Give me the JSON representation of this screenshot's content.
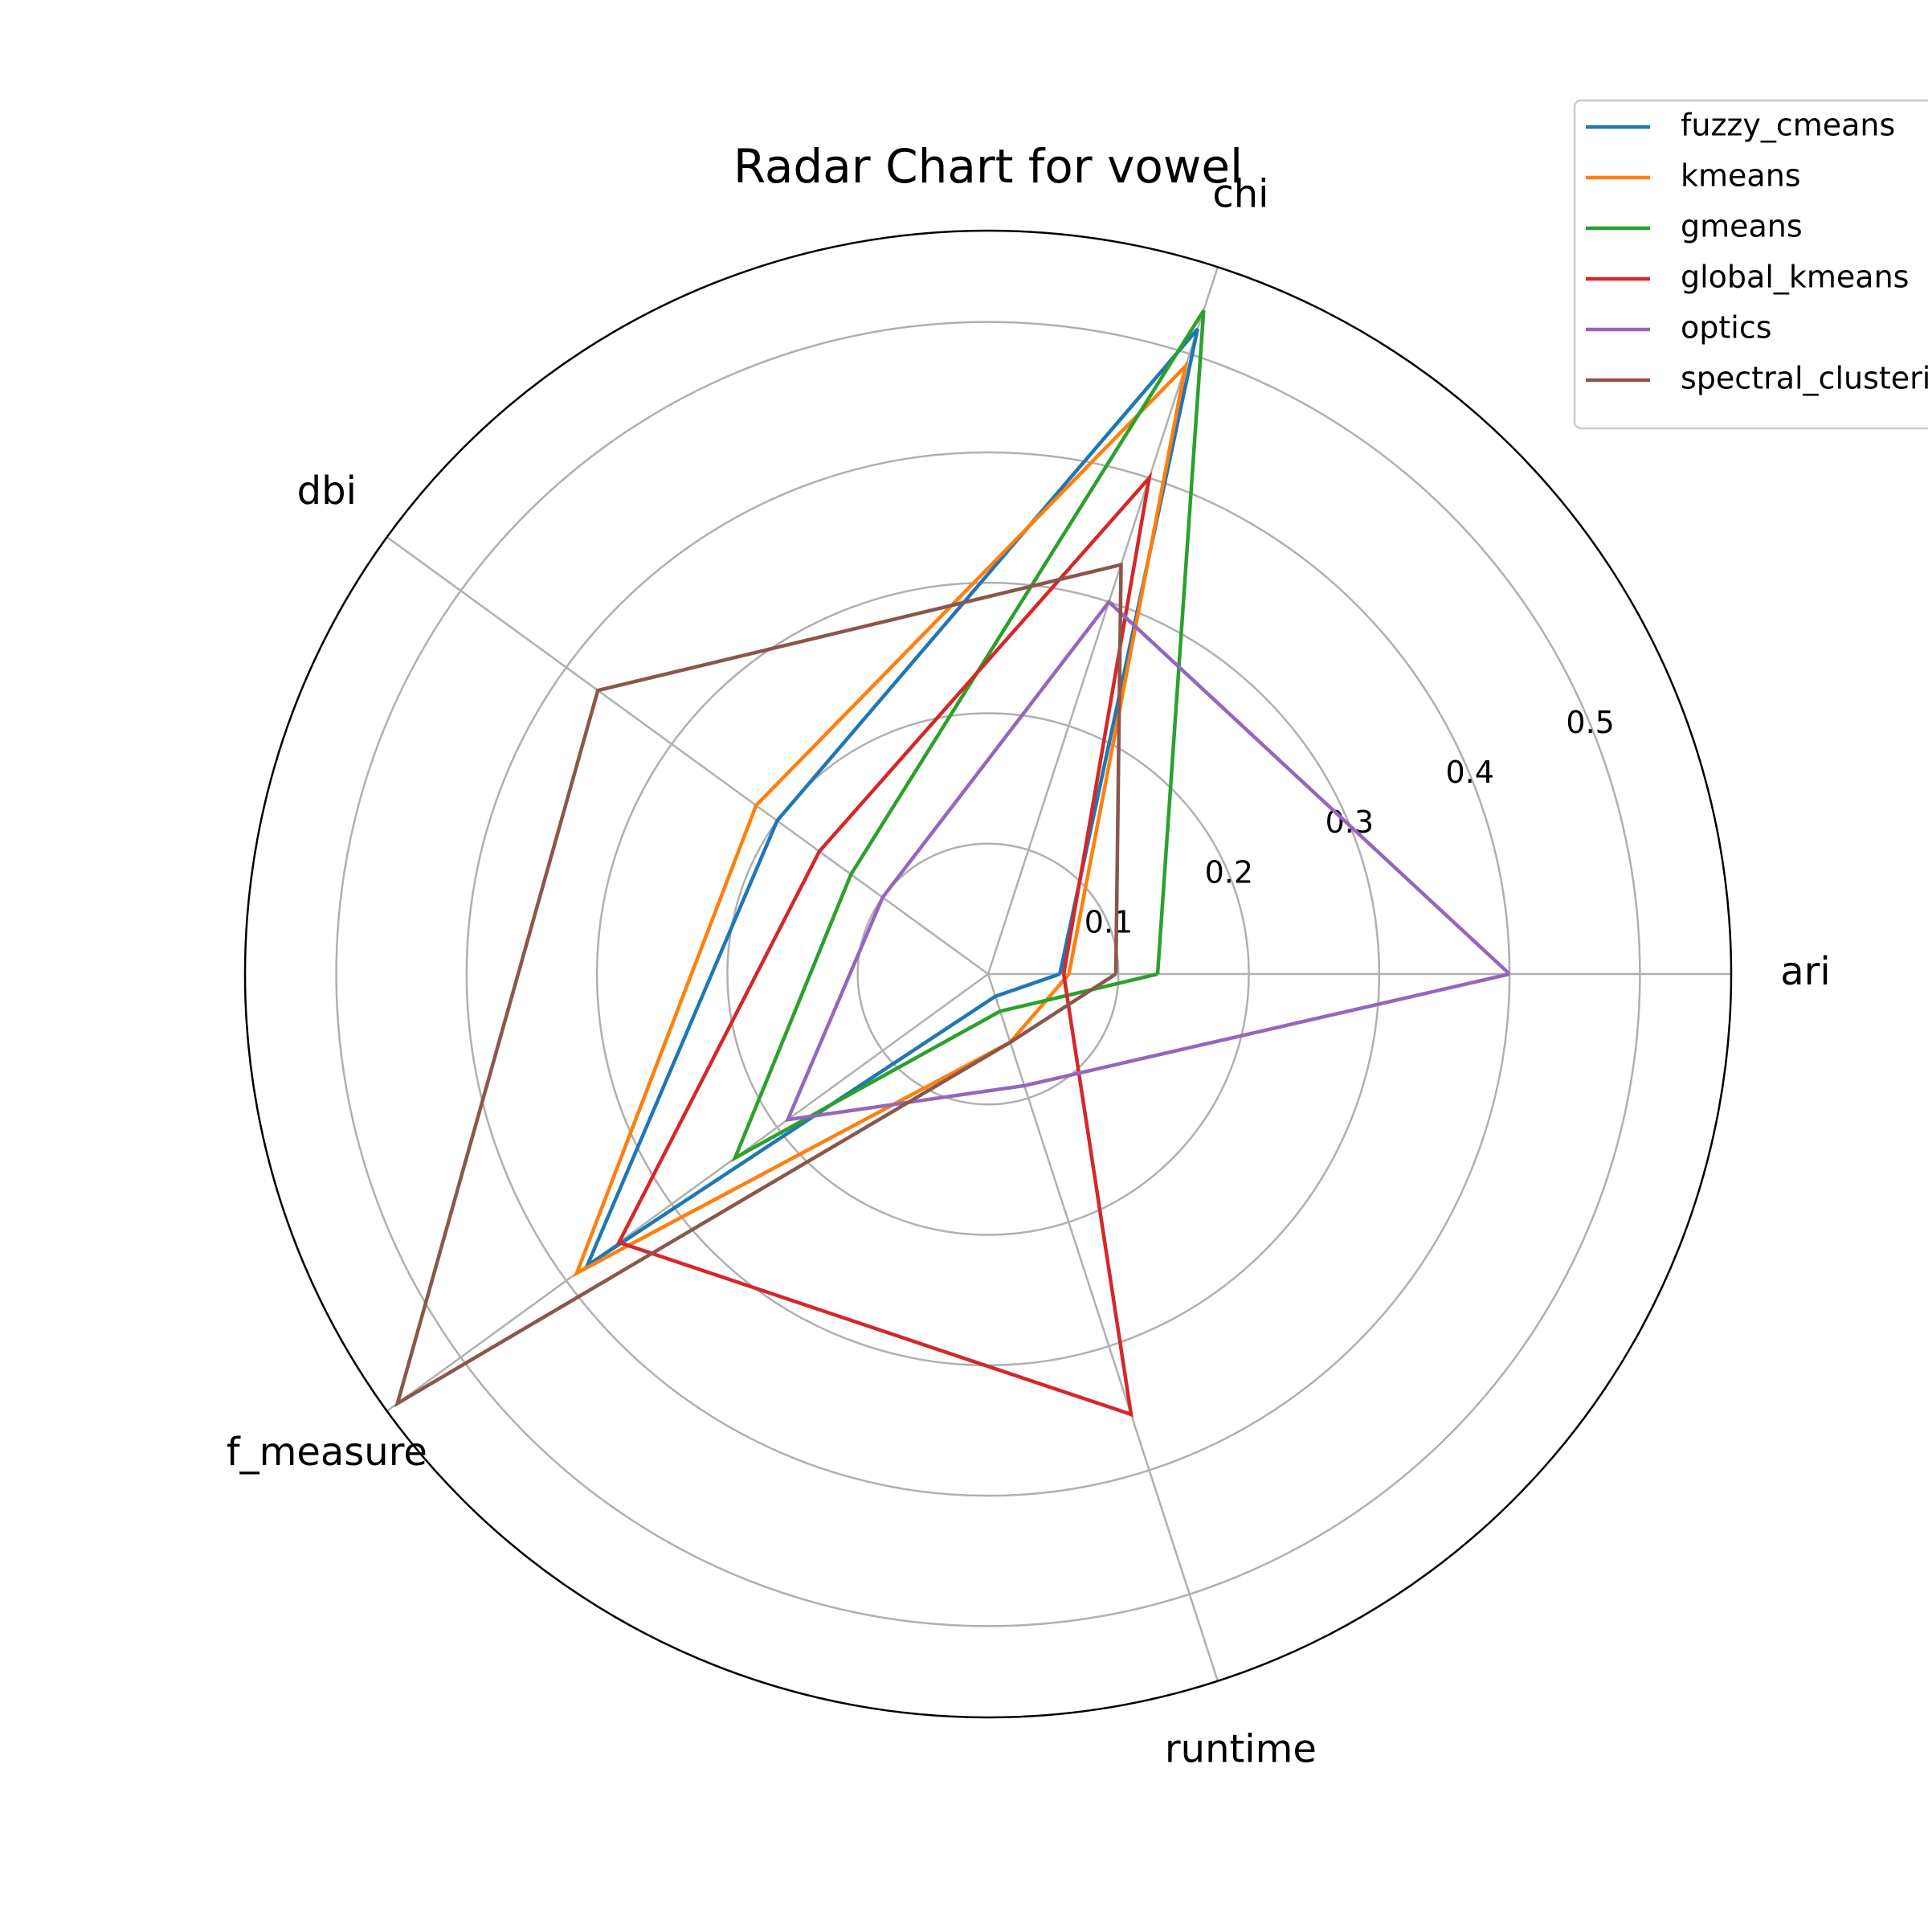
{
  "chart_data": {
    "type": "radar",
    "title": "Radar Chart for vowel",
    "axes": [
      "ari",
      "chi",
      "dbi",
      "f_measure",
      "runtime"
    ],
    "rlim": [
      0,
      0.57
    ],
    "rticks": [
      0.1,
      0.2,
      0.3,
      0.4,
      0.5
    ],
    "rtick_labels": [
      "0.1",
      "0.2",
      "0.3",
      "0.4",
      "0.5"
    ],
    "grid": true,
    "legend_position": "top-right",
    "series": [
      {
        "name": "fuzzy_cmeans",
        "color": "#1f77b4",
        "values": [
          0.055,
          0.52,
          0.2,
          0.38,
          0.018
        ]
      },
      {
        "name": "kmeans",
        "color": "#ff7f0e",
        "values": [
          0.062,
          0.49,
          0.22,
          0.39,
          0.055
        ]
      },
      {
        "name": "gmeans",
        "color": "#2ca02c",
        "values": [
          0.13,
          0.535,
          0.13,
          0.24,
          0.03
        ]
      },
      {
        "name": "global_kmeans",
        "color": "#d62728",
        "values": [
          0.058,
          0.4,
          0.16,
          0.35,
          0.355
        ]
      },
      {
        "name": "optics",
        "color": "#9467bd",
        "values": [
          0.4,
          0.3,
          0.1,
          0.19,
          0.09
        ]
      },
      {
        "name": "spectral_clustering",
        "color": "#8c564b",
        "values": [
          0.098,
          0.33,
          0.37,
          0.56,
          0.055
        ]
      }
    ]
  }
}
